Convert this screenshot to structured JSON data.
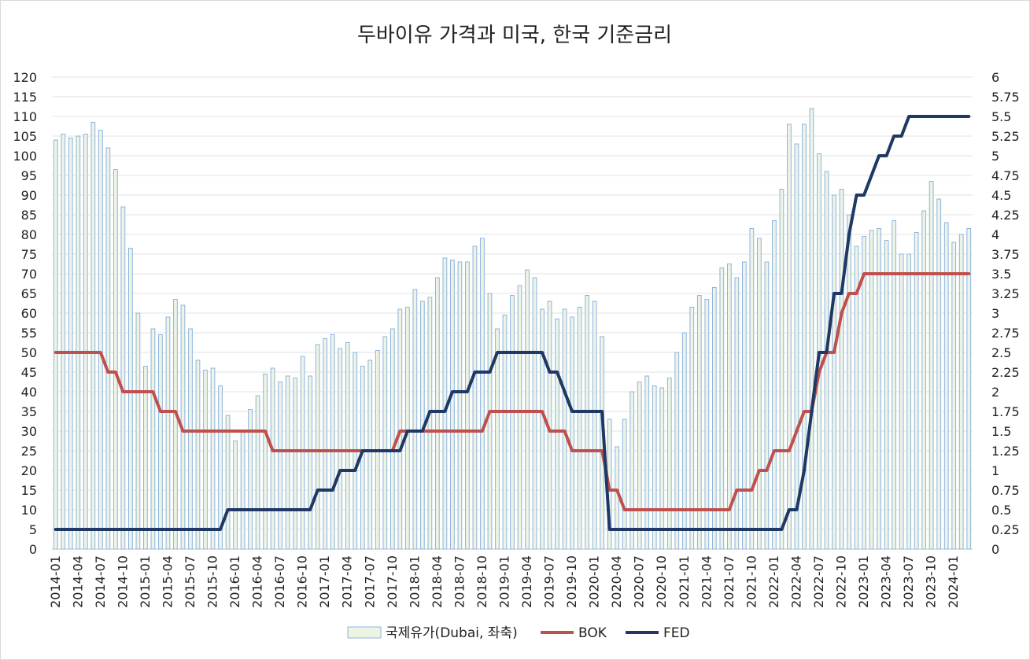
{
  "chart_data": {
    "type": "bar+line",
    "title": "두바이유 가격과 미국, 한국 기준금리",
    "x_tick_labels": [
      "2014-01",
      "2014-04",
      "2014-07",
      "2014-10",
      "2015-01",
      "2015-04",
      "2015-07",
      "2015-10",
      "2016-01",
      "2016-04",
      "2016-07",
      "2016-10",
      "2017-01",
      "2017-04",
      "2017-07",
      "2017-10",
      "2018-01",
      "2018-04",
      "2018-07",
      "2018-10",
      "2019-01",
      "2019-04",
      "2019-07",
      "2019-10",
      "2020-01",
      "2020-04",
      "2020-07",
      "2020-10",
      "2021-01",
      "2021-04",
      "2021-07",
      "2021-10",
      "2022-01",
      "2022-04",
      "2022-07",
      "2022-10",
      "2023-01",
      "2023-04",
      "2023-07",
      "2023-10",
      "2024-01"
    ],
    "y_left": {
      "min": 0,
      "max": 120,
      "step": 5,
      "tick_labels": [
        "0",
        "5",
        "10",
        "15",
        "20",
        "25",
        "30",
        "35",
        "40",
        "45",
        "50",
        "55",
        "60",
        "65",
        "70",
        "75",
        "80",
        "85",
        "90",
        "95",
        "100",
        "105",
        "110",
        "115",
        "120"
      ]
    },
    "y_right": {
      "min": 0,
      "max": 6,
      "step": 0.25,
      "tick_labels": [
        "0",
        "0.25",
        "0.5",
        "0.75",
        "1",
        "1.25",
        "1.5",
        "1.75",
        "2",
        "2.25",
        "2.5",
        "2.75",
        "3",
        "3.25",
        "3.5",
        "3.75",
        "4",
        "4.25",
        "4.5",
        "4.75",
        "5",
        "5.25",
        "5.5",
        "5.75",
        "6"
      ]
    },
    "grid": true,
    "legend_position": "bottom-center",
    "series": [
      {
        "name": "국제유가(Dubai, 좌축)",
        "type": "bar",
        "axis": "left",
        "color": "#8db4e2",
        "fill": "#eef4e3",
        "start": "2014-01",
        "values": [
          104,
          105.5,
          104.5,
          105,
          105.5,
          108.5,
          106.5,
          102,
          96.5,
          87,
          76.5,
          60,
          46.5,
          56,
          54.5,
          59,
          63.5,
          62,
          56,
          48,
          45.5,
          46,
          41.5,
          34,
          27.5,
          30,
          35.5,
          39,
          44.5,
          46,
          42.5,
          44,
          43.5,
          49,
          44,
          52,
          53.5,
          54.5,
          51,
          52.5,
          50,
          46.5,
          48,
          50.5,
          54,
          56,
          61,
          61.5,
          66,
          63,
          64,
          69,
          74,
          73.5,
          73,
          73,
          77,
          79,
          65,
          56,
          59.5,
          64.5,
          67,
          71,
          69,
          61,
          63,
          58.5,
          61,
          59,
          61.5,
          64.5,
          63,
          54,
          33,
          26,
          33,
          40,
          42.5,
          44,
          41.5,
          41,
          43.5,
          50,
          55,
          61.5,
          64.5,
          63.5,
          66.5,
          71.5,
          72.5,
          69,
          73,
          81.5,
          79,
          73,
          83.5,
          91.5,
          108,
          103,
          108,
          112,
          100.5,
          96,
          90,
          91.5,
          85,
          77,
          79.5,
          81,
          81.5,
          78.5,
          83.5,
          75,
          75,
          80.5,
          86,
          93.5,
          89,
          83,
          78,
          80,
          81.5
        ]
      },
      {
        "name": "BOK",
        "type": "line",
        "axis": "right",
        "color": "#c0504d",
        "changes": [
          {
            "month": "2014-01",
            "rate": 2.5
          },
          {
            "month": "2014-08",
            "rate": 2.25
          },
          {
            "month": "2014-10",
            "rate": 2.0
          },
          {
            "month": "2015-03",
            "rate": 1.75
          },
          {
            "month": "2015-06",
            "rate": 1.5
          },
          {
            "month": "2016-06",
            "rate": 1.25
          },
          {
            "month": "2017-11",
            "rate": 1.5
          },
          {
            "month": "2018-11",
            "rate": 1.75
          },
          {
            "month": "2019-07",
            "rate": 1.5
          },
          {
            "month": "2019-10",
            "rate": 1.25
          },
          {
            "month": "2020-03",
            "rate": 0.75
          },
          {
            "month": "2020-05",
            "rate": 0.5
          },
          {
            "month": "2021-08",
            "rate": 0.75
          },
          {
            "month": "2021-11",
            "rate": 1.0
          },
          {
            "month": "2022-01",
            "rate": 1.25
          },
          {
            "month": "2022-04",
            "rate": 1.5
          },
          {
            "month": "2022-05",
            "rate": 1.75
          },
          {
            "month": "2022-07",
            "rate": 2.25
          },
          {
            "month": "2022-08",
            "rate": 2.5
          },
          {
            "month": "2022-10",
            "rate": 3.0
          },
          {
            "month": "2022-11",
            "rate": 3.25
          },
          {
            "month": "2023-01",
            "rate": 3.5
          }
        ]
      },
      {
        "name": "FED",
        "type": "line",
        "axis": "right",
        "color": "#1f3864",
        "changes": [
          {
            "month": "2014-01",
            "rate": 0.25
          },
          {
            "month": "2015-12",
            "rate": 0.5
          },
          {
            "month": "2016-12",
            "rate": 0.75
          },
          {
            "month": "2017-03",
            "rate": 1.0
          },
          {
            "month": "2017-06",
            "rate": 1.25
          },
          {
            "month": "2017-12",
            "rate": 1.5
          },
          {
            "month": "2018-03",
            "rate": 1.75
          },
          {
            "month": "2018-06",
            "rate": 2.0
          },
          {
            "month": "2018-09",
            "rate": 2.25
          },
          {
            "month": "2018-12",
            "rate": 2.5
          },
          {
            "month": "2019-07",
            "rate": 2.25
          },
          {
            "month": "2019-09",
            "rate": 2.0
          },
          {
            "month": "2019-10",
            "rate": 1.75
          },
          {
            "month": "2020-03",
            "rate": 0.25
          },
          {
            "month": "2022-03",
            "rate": 0.5
          },
          {
            "month": "2022-05",
            "rate": 1.0
          },
          {
            "month": "2022-06",
            "rate": 1.75
          },
          {
            "month": "2022-07",
            "rate": 2.5
          },
          {
            "month": "2022-09",
            "rate": 3.25
          },
          {
            "month": "2022-11",
            "rate": 4.0
          },
          {
            "month": "2022-12",
            "rate": 4.5
          },
          {
            "month": "2023-02",
            "rate": 4.75
          },
          {
            "month": "2023-03",
            "rate": 5.0
          },
          {
            "month": "2023-05",
            "rate": 5.25
          },
          {
            "month": "2023-07",
            "rate": 5.5
          }
        ]
      }
    ]
  }
}
